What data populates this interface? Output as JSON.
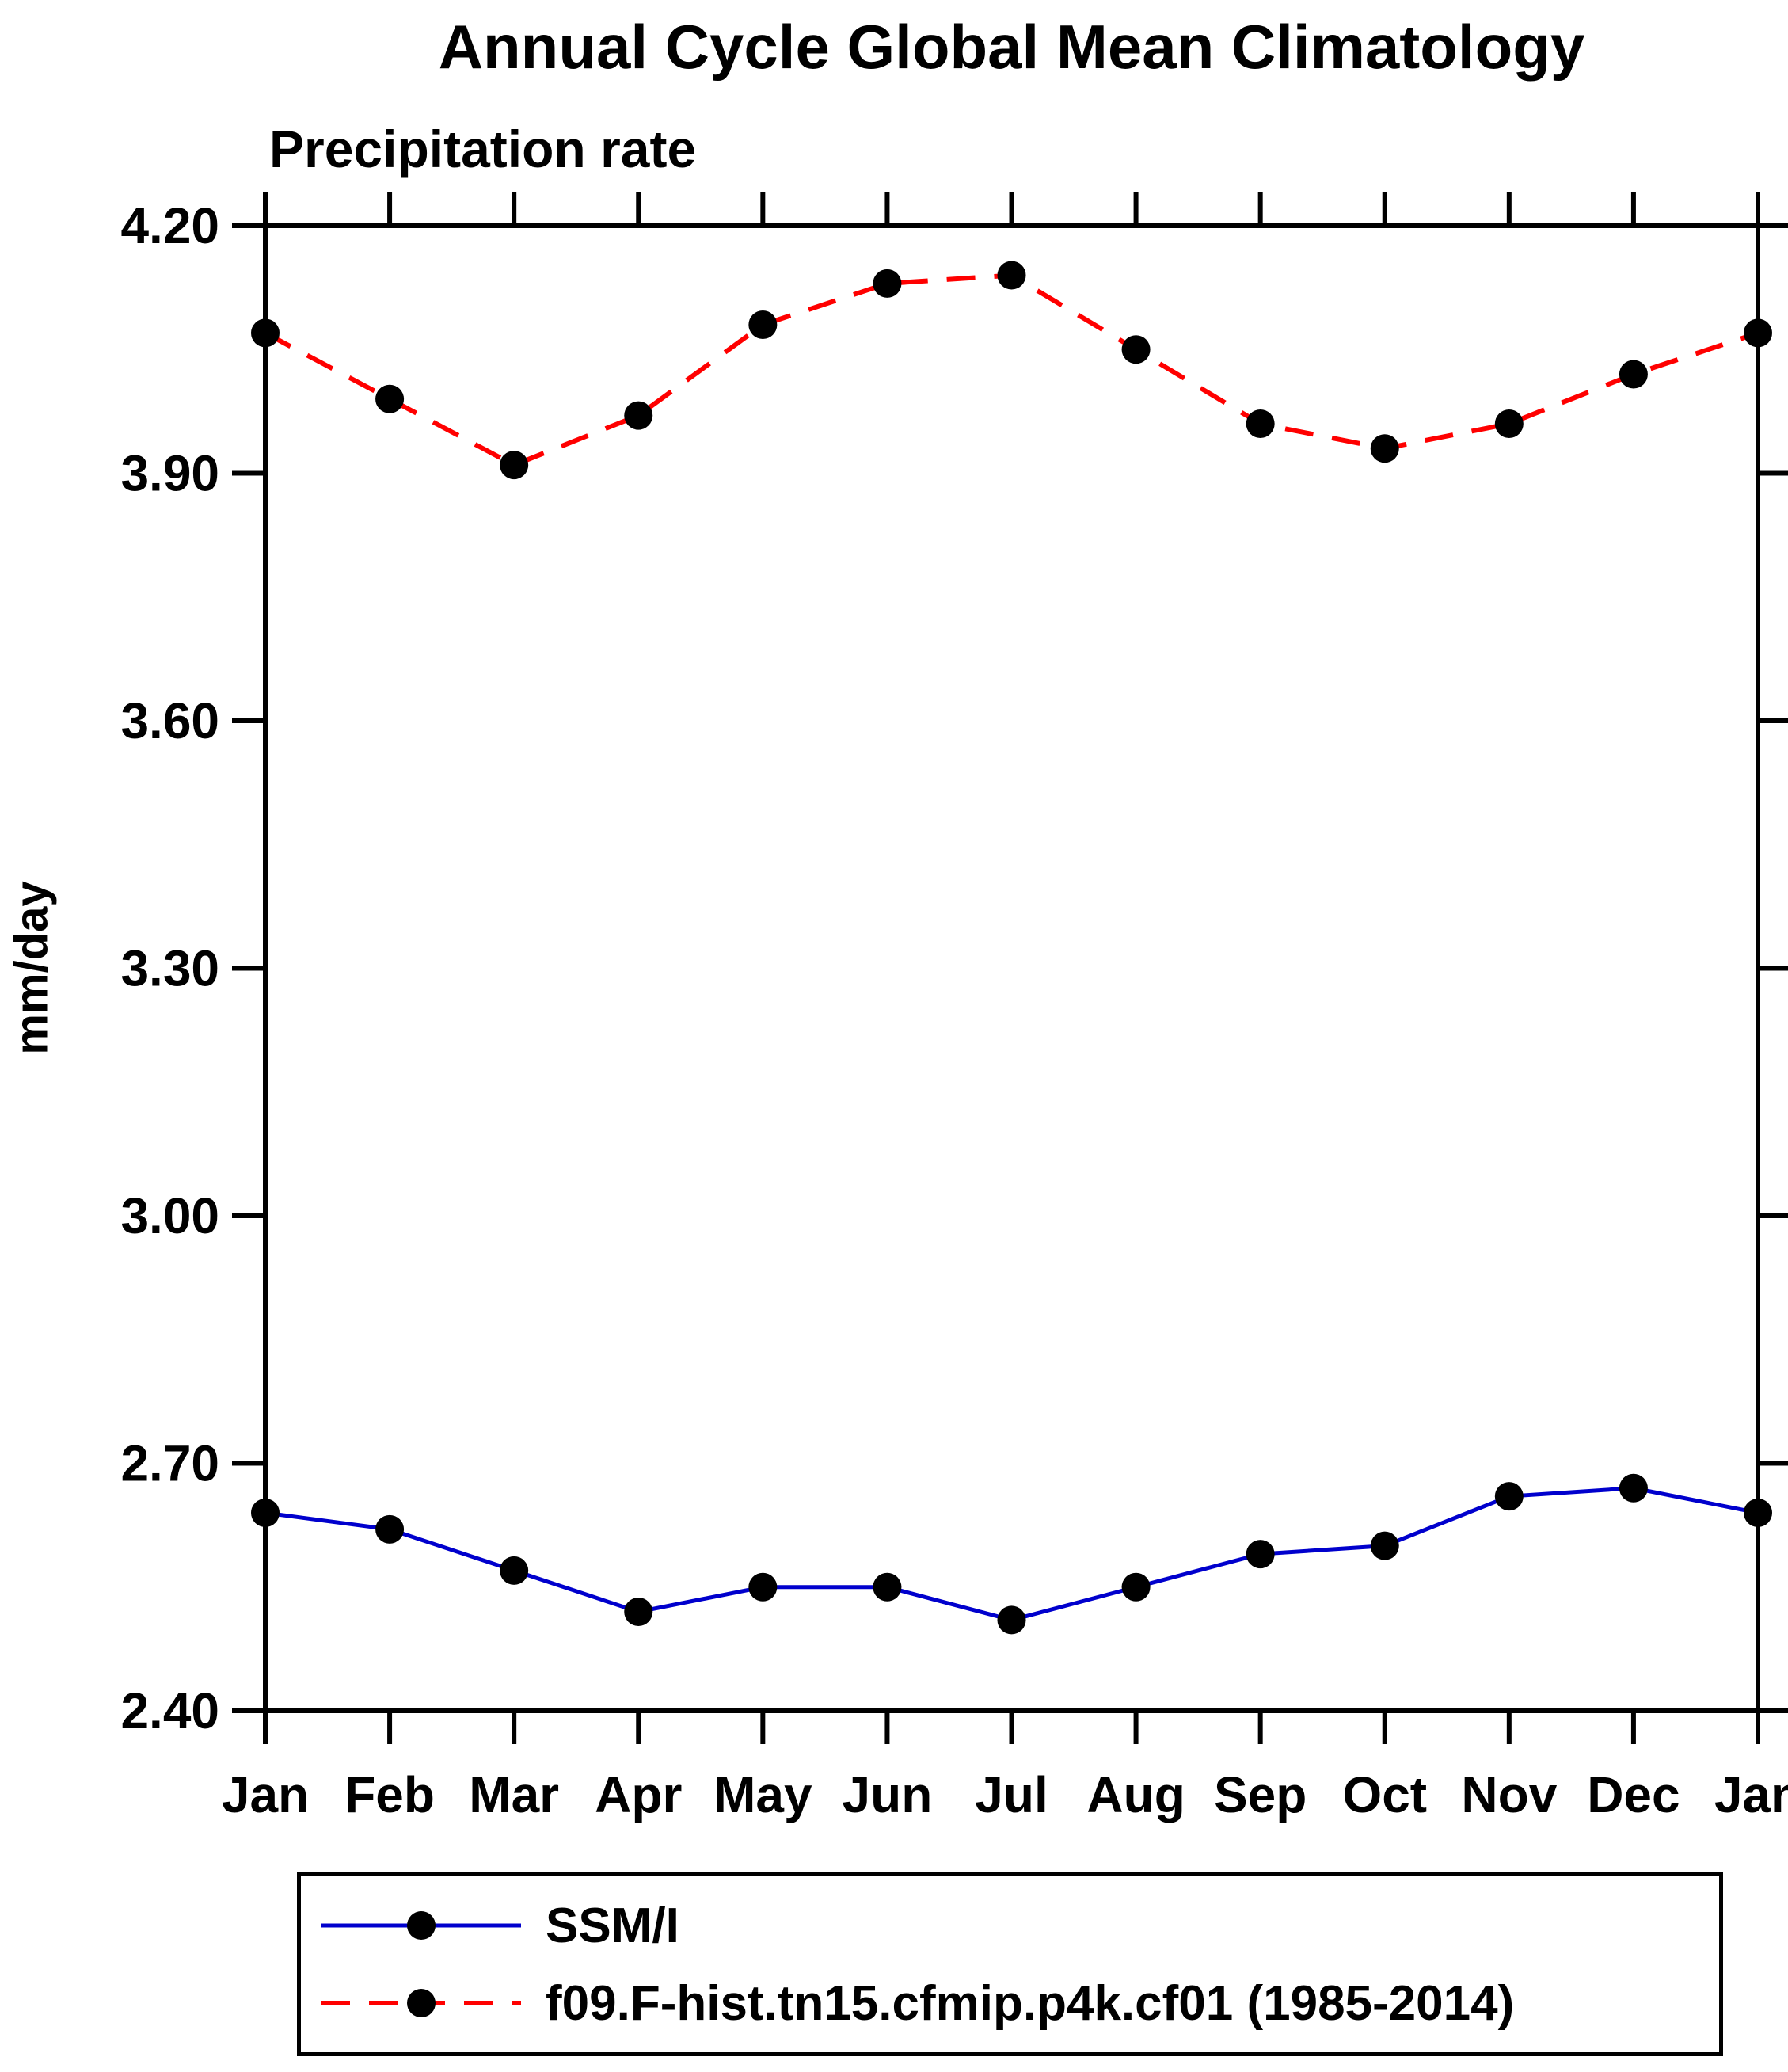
{
  "chart_data": {
    "type": "line",
    "title": "Annual Cycle Global Mean Climatology",
    "subtitle": "Precipitation rate",
    "ylabel": "mm/day",
    "ylim": [
      2.4,
      4.2
    ],
    "yticks": [
      2.4,
      2.7,
      3.0,
      3.3,
      3.6,
      3.9,
      4.2
    ],
    "grid": false,
    "legend_position": "bottom",
    "categories": [
      "Jan",
      "Feb",
      "Mar",
      "Apr",
      "May",
      "Jun",
      "Jul",
      "Aug",
      "Sep",
      "Oct",
      "Nov",
      "Dec",
      "Jan"
    ],
    "series": [
      {
        "name": "SSM/I",
        "color": "#0000cd",
        "line_style": "solid",
        "marker": "circle",
        "marker_color": "#000000",
        "values": [
          2.64,
          2.62,
          2.57,
          2.52,
          2.55,
          2.55,
          2.51,
          2.55,
          2.59,
          2.6,
          2.66,
          2.67,
          2.64
        ]
      },
      {
        "name": "f09.F-hist.tn15.cfmip.p4k.cf01 (1985-2014)",
        "color": "#ff0000",
        "line_style": "dashed",
        "marker": "circle",
        "marker_color": "#000000",
        "values": [
          4.07,
          3.99,
          3.91,
          3.97,
          4.08,
          4.13,
          4.14,
          4.05,
          3.96,
          3.93,
          3.96,
          4.02,
          4.07
        ]
      }
    ]
  }
}
